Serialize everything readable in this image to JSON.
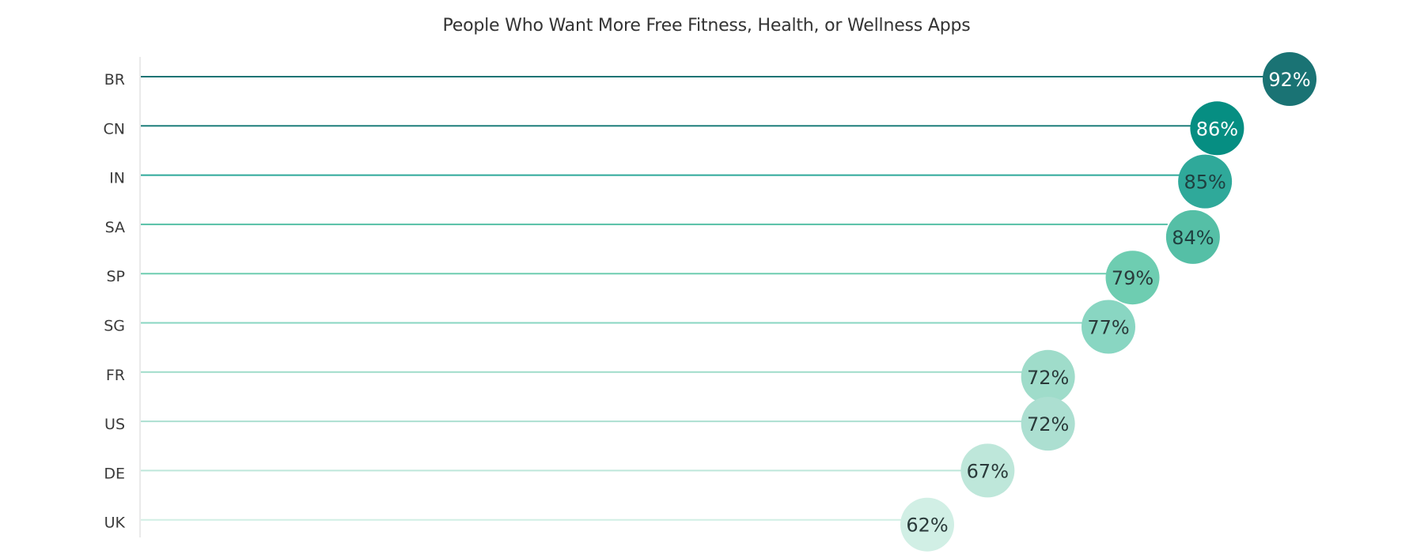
{
  "chart_data": {
    "type": "lollipop",
    "title": "People Who Want More Free Fitness, Health, or Wellness Apps",
    "xlabel": "",
    "ylabel": "",
    "xlim": [
      0,
      100
    ],
    "value_unit": "%",
    "categories": [
      "BR",
      "CN",
      "IN",
      "SA",
      "SP",
      "SG",
      "FR",
      "US",
      "DE",
      "UK"
    ],
    "values": [
      92,
      86,
      85,
      84,
      79,
      77,
      72,
      72,
      67,
      62
    ],
    "data_labels": [
      "92%",
      "86%",
      "85%",
      "84%",
      "79%",
      "77%",
      "72%",
      "72%",
      "67%",
      "62%"
    ],
    "grid": false,
    "legend": "none",
    "colors": {
      "bubbles": [
        "#1a7374",
        "#068e82",
        "#2fa99a",
        "#55bfa6",
        "#6ecdb1",
        "#89d6c2",
        "#9fdcca",
        "#acdfd1",
        "#bee7da",
        "#d1efe5"
      ],
      "stems": [
        "#1a7374",
        "#1f7f7c",
        "#2fa99a",
        "#55bfa6",
        "#6ecdb1",
        "#89d6c2",
        "#9fdcca",
        "#acdfd1",
        "#bee7da",
        "#d1efe5"
      ],
      "label_text": [
        "#ffffff",
        "#ffffff",
        "#1f3f3f",
        "#1f3f3f",
        "#2a3a3a",
        "#2a3a3a",
        "#2a3a3a",
        "#2a3a3a",
        "#2a3a3a",
        "#2a3a3a"
      ]
    }
  }
}
